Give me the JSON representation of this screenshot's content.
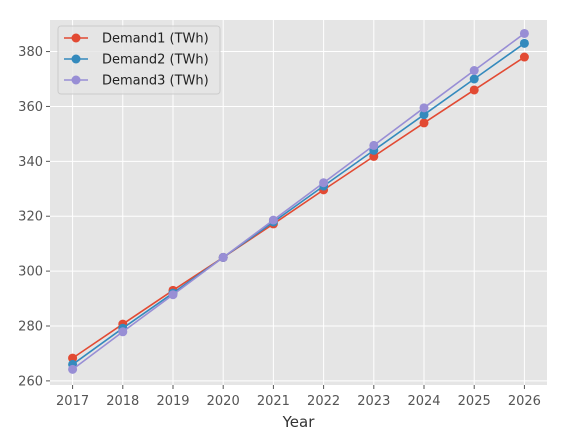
{
  "chart_data": {
    "type": "line",
    "title": "",
    "xlabel": "Year",
    "ylabel": "",
    "x": [
      2017,
      2018,
      2019,
      2020,
      2021,
      2022,
      2023,
      2024,
      2025,
      2026
    ],
    "xlim": [
      2016.55,
      2026.45
    ],
    "ylim": [
      258.5,
      391.5
    ],
    "yticks": [
      260,
      280,
      300,
      320,
      340,
      360,
      380
    ],
    "grid": true,
    "legend_position": "top-left",
    "series": [
      {
        "name": "Demand1 (TWh)",
        "color": "#E24A33",
        "values": [
          268.3,
          280.7,
          293.0,
          305.0,
          317.2,
          329.6,
          341.8,
          354.0,
          366.0,
          378.0
        ]
      },
      {
        "name": "Demand2 (TWh)",
        "color": "#348ABD",
        "values": [
          266.0,
          279.2,
          292.0,
          305.0,
          317.9,
          331.0,
          344.0,
          357.0,
          370.0,
          383.0
        ]
      },
      {
        "name": "Demand3 (TWh)",
        "color": "#988ED5",
        "values": [
          264.2,
          277.9,
          291.4,
          305.0,
          318.6,
          332.2,
          345.8,
          359.5,
          373.1,
          386.6
        ]
      }
    ]
  }
}
